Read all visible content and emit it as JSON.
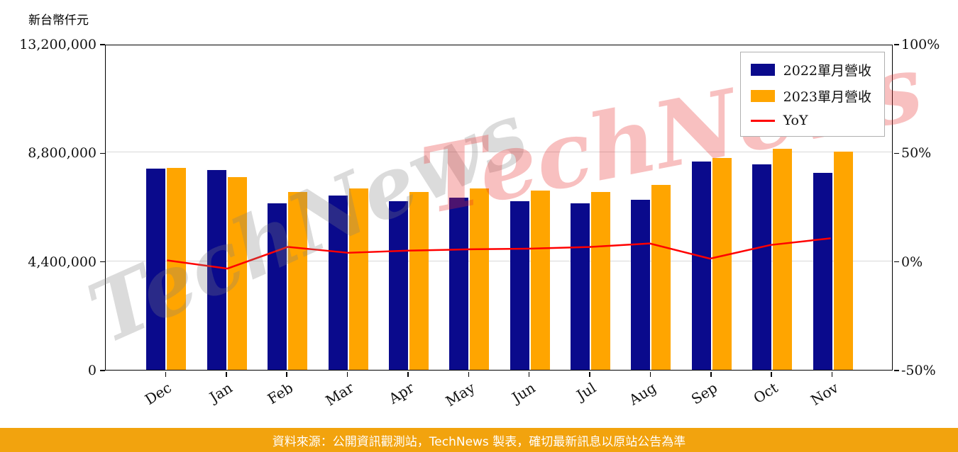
{
  "header": {
    "unit_label": "新台幣仟元"
  },
  "watermark": {
    "text": "TechNews"
  },
  "footer": {
    "source_text": "資料來源：公開資訊觀測站，TechNews 製表，確切最新訊息以原站公告為準"
  },
  "colors": {
    "bar_2022": "#0A0A8C",
    "bar_2023": "#FFA500",
    "yoy_line": "#FF0000",
    "footer_bg": "#F2A30E",
    "gridline": "#D8D8D8"
  },
  "chart_data": {
    "type": "bar",
    "title": "",
    "categories": [
      "Dec",
      "Jan",
      "Feb",
      "Mar",
      "Apr",
      "May",
      "Jun",
      "Jul",
      "Aug",
      "Sep",
      "Oct",
      "Nov"
    ],
    "series": [
      {
        "name": "2022單月營收",
        "type": "bar",
        "color": "#0A0A8C",
        "values": [
          8140000,
          8080000,
          6730000,
          7070000,
          6840000,
          6960000,
          6840000,
          6730000,
          6900000,
          8450000,
          8310000,
          7990000
        ]
      },
      {
        "name": "2023單月營收",
        "type": "bar",
        "color": "#FFA500",
        "values": [
          8190000,
          7820000,
          7190000,
          7360000,
          7190000,
          7360000,
          7250000,
          7190000,
          7480000,
          8570000,
          8950000,
          8850000
        ]
      },
      {
        "name": "YoY",
        "type": "line",
        "color": "#FF0000",
        "axis": "right",
        "values": [
          0.6,
          -3.2,
          6.8,
          4.1,
          5.1,
          5.7,
          6.0,
          6.8,
          8.4,
          1.4,
          7.7,
          10.8
        ]
      }
    ],
    "left_axis": {
      "label": "新台幣仟元",
      "min": 0,
      "max": 13200000,
      "tick_values": [
        0,
        4400000,
        8800000,
        13200000
      ],
      "tick_labels": [
        "0",
        "4,400,000",
        "8,800,000",
        "13,200,000"
      ]
    },
    "right_axis": {
      "unit": "%",
      "min": -50,
      "max": 100,
      "tick_values": [
        -50,
        0,
        50,
        100
      ],
      "tick_labels": [
        "-50%",
        "0%",
        "50%",
        "100%"
      ]
    },
    "legend": {
      "position": "top-right",
      "entries": [
        "2022單月營收",
        "2023單月營收",
        "YoY"
      ]
    },
    "grid": true
  }
}
